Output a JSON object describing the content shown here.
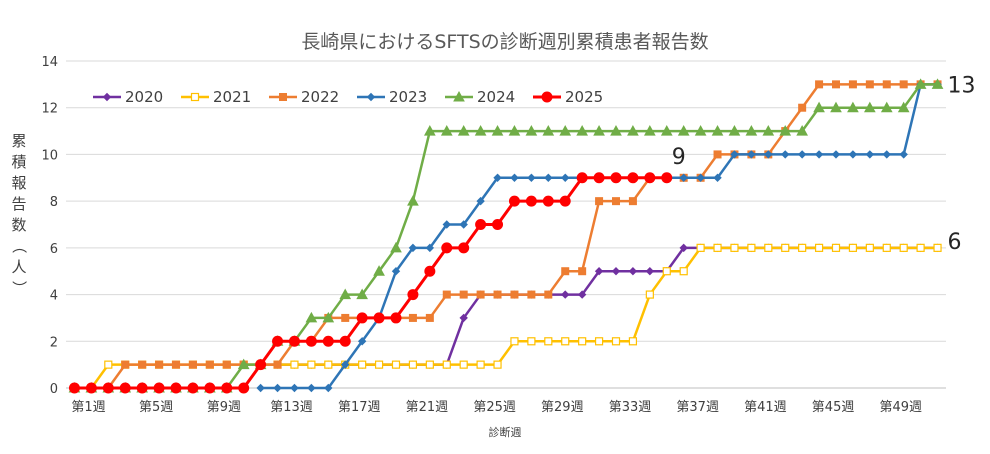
{
  "chart_data": {
    "type": "line",
    "title": "長崎県におけるSFTSの診断週別累積患者報告数",
    "xlabel": "診断週",
    "ylabel": "累積報告数（人）",
    "ylim": [
      0,
      14
    ],
    "yticks": [
      0,
      2,
      4,
      6,
      8,
      10,
      12,
      14
    ],
    "weeks": 52,
    "xtick_labels": [
      "第1週",
      "第5週",
      "第9週",
      "第13週",
      "第17週",
      "第21週",
      "第25週",
      "第29週",
      "第33週",
      "第37週",
      "第41週",
      "第45週",
      "第49週"
    ],
    "xtick_weeks": [
      1,
      5,
      9,
      13,
      17,
      21,
      25,
      29,
      33,
      37,
      41,
      45,
      49
    ],
    "grid": "horizontal",
    "legend_position": "top-left",
    "series": [
      {
        "name": "2020",
        "color": "#7030a0",
        "marker": "diamond",
        "values": [
          0,
          0,
          0,
          0,
          0,
          0,
          0,
          0,
          0,
          0,
          0,
          1,
          1,
          1,
          1,
          1,
          1,
          1,
          1,
          1,
          1,
          1,
          1,
          3,
          4,
          4,
          4,
          4,
          4,
          4,
          4,
          5,
          5,
          5,
          5,
          5,
          6,
          6,
          6,
          6,
          6,
          6,
          6,
          6,
          6,
          6,
          6,
          6,
          6,
          6,
          6,
          6
        ]
      },
      {
        "name": "2021",
        "color": "#ffc000",
        "marker": "square-open",
        "values": [
          0,
          0,
          1,
          1,
          1,
          1,
          1,
          1,
          1,
          1,
          1,
          1,
          1,
          1,
          1,
          1,
          1,
          1,
          1,
          1,
          1,
          1,
          1,
          1,
          1,
          1,
          2,
          2,
          2,
          2,
          2,
          2,
          2,
          2,
          4,
          5,
          5,
          6,
          6,
          6,
          6,
          6,
          6,
          6,
          6,
          6,
          6,
          6,
          6,
          6,
          6,
          6
        ]
      },
      {
        "name": "2022",
        "color": "#ed7d31",
        "marker": "square",
        "values": [
          0,
          0,
          0,
          1,
          1,
          1,
          1,
          1,
          1,
          1,
          1,
          1,
          1,
          2,
          2,
          3,
          3,
          3,
          3,
          3,
          3,
          3,
          4,
          4,
          4,
          4,
          4,
          4,
          4,
          5,
          5,
          8,
          8,
          8,
          9,
          9,
          9,
          9,
          10,
          10,
          10,
          10,
          11,
          12,
          13,
          13,
          13,
          13,
          13,
          13,
          13,
          13
        ]
      },
      {
        "name": "2023",
        "color": "#2e75b6",
        "marker": "diamond",
        "values": [
          null,
          null,
          null,
          null,
          null,
          null,
          null,
          null,
          null,
          null,
          null,
          0,
          0,
          0,
          0,
          0,
          1,
          2,
          3,
          5,
          6,
          6,
          7,
          7,
          8,
          9,
          9,
          9,
          9,
          9,
          9,
          9,
          9,
          9,
          9,
          9,
          9,
          9,
          9,
          10,
          10,
          10,
          10,
          10,
          10,
          10,
          10,
          10,
          10,
          10,
          13,
          13
        ]
      },
      {
        "name": "2024",
        "color": "#70ad47",
        "marker": "triangle",
        "values": [
          0,
          0,
          0,
          0,
          0,
          0,
          0,
          0,
          0,
          0,
          1,
          1,
          2,
          2,
          3,
          3,
          4,
          4,
          5,
          6,
          8,
          11,
          11,
          11,
          11,
          11,
          11,
          11,
          11,
          11,
          11,
          11,
          11,
          11,
          11,
          11,
          11,
          11,
          11,
          11,
          11,
          11,
          11,
          11,
          12,
          12,
          12,
          12,
          12,
          12,
          13,
          13
        ]
      },
      {
        "name": "2025",
        "color": "#ff0000",
        "marker": "circle",
        "values": [
          0,
          0,
          0,
          0,
          0,
          0,
          0,
          0,
          0,
          0,
          0,
          1,
          2,
          2,
          2,
          2,
          2,
          3,
          3,
          3,
          4,
          5,
          6,
          6,
          7,
          7,
          8,
          8,
          8,
          8,
          9,
          9,
          9,
          9,
          9,
          9
        ]
      }
    ],
    "annotations": [
      {
        "text": "13",
        "week": 52,
        "value": 13
      },
      {
        "text": "9",
        "week": 36,
        "value": 9
      },
      {
        "text": "6",
        "week": 52,
        "value": 6
      }
    ]
  }
}
